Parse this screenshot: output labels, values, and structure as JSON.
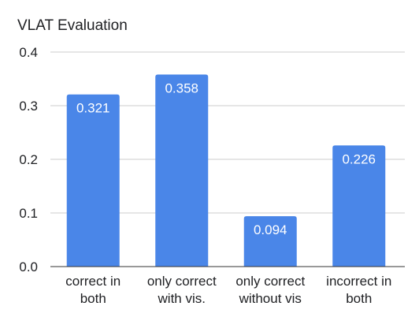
{
  "chart_data": {
    "type": "bar",
    "title": "VLAT Evaluation",
    "categories": [
      [
        "correct in",
        "both"
      ],
      [
        "only correct",
        "with vis."
      ],
      [
        "only correct",
        "without vis"
      ],
      [
        "incorrect in",
        "both"
      ]
    ],
    "values": [
      0.321,
      0.358,
      0.094,
      0.226
    ],
    "data_labels": [
      "0.321",
      "0.358",
      "0.094",
      "0.226"
    ],
    "y_ticks": [
      "0.0",
      "0.1",
      "0.2",
      "0.3",
      "0.4"
    ],
    "ylim": [
      0,
      0.4
    ],
    "grid": true,
    "legend": "none",
    "colors": {
      "bar": "#4a86e8",
      "grid": "#cccccc",
      "axis": "#333333",
      "text": "#202124",
      "label": "#ffffff"
    }
  }
}
